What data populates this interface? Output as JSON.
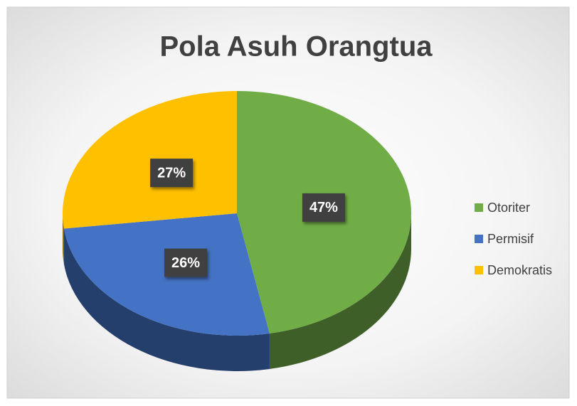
{
  "chart_data": {
    "type": "pie",
    "title": "Pola Asuh Orangtua",
    "categories": [
      "Otoriter",
      "Permisif",
      "Demokratis"
    ],
    "values": [
      47,
      26,
      27
    ],
    "value_labels": [
      "47%",
      "26%",
      "27%"
    ],
    "colors": [
      "#70ad47",
      "#4472c4",
      "#ffc000"
    ],
    "legend": "right"
  }
}
